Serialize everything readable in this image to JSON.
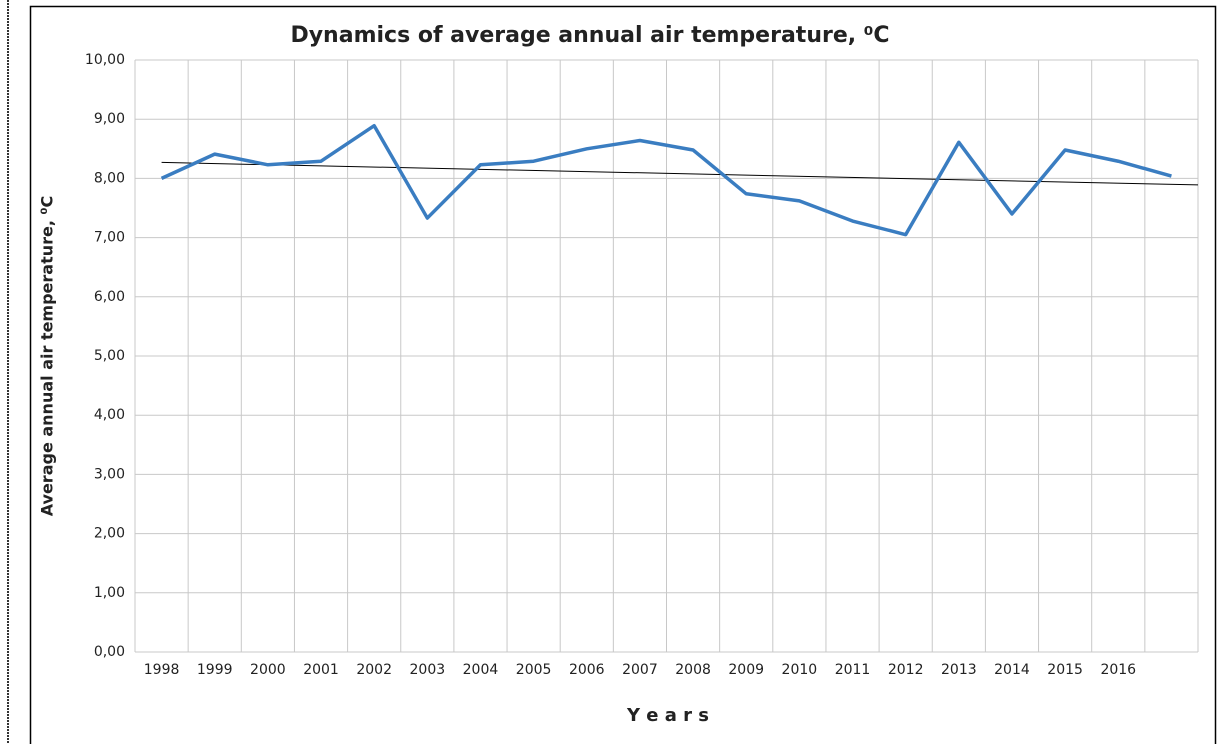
{
  "chart_data": {
    "type": "line",
    "title": "Dynamics of average annual air temperature, ⁰C",
    "y_label": "Average annual air temperature, ⁰C",
    "x_label": "Y e a r s",
    "categories": [
      "1998",
      "1999",
      "2000",
      "2001",
      "2002",
      "2003",
      "2004",
      "2005",
      "2006",
      "2007",
      "2008",
      "2009",
      "2010",
      "2011",
      "2012",
      "2013",
      "2014",
      "2015",
      "2016",
      null
    ],
    "series": [
      {
        "color": "#3a7dc1",
        "values": [
          8.0,
          8.41,
          8.23,
          8.29,
          8.89,
          7.33,
          8.23,
          8.29,
          8.5,
          8.64,
          8.48,
          7.74,
          7.62,
          7.28,
          7.05,
          8.61,
          7.4,
          8.48,
          8.29,
          8.04
        ]
      }
    ],
    "trendline": {
      "color": "#000000",
      "values": [
        8.27,
        7.9
      ]
    },
    "ylim": [
      0,
      10
    ],
    "yticks": [
      {
        "value": 0,
        "label": "0,00"
      },
      {
        "value": 1,
        "label": "1,00"
      },
      {
        "value": 2,
        "label": "2,00"
      },
      {
        "value": 3,
        "label": "3,00"
      },
      {
        "value": 4,
        "label": "4,00"
      },
      {
        "value": 5,
        "label": "5,00"
      },
      {
        "value": 6,
        "label": "6,00"
      },
      {
        "value": 7,
        "label": "7,00"
      },
      {
        "value": 8,
        "label": "8,00"
      },
      {
        "value": 9,
        "label": "9,00"
      },
      {
        "value": 10,
        "label": "10,00"
      }
    ],
    "grid": true
  }
}
